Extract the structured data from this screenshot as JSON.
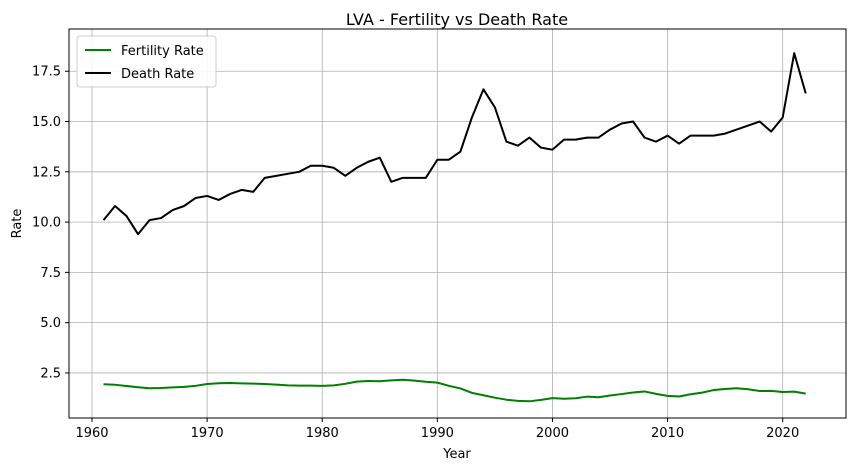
{
  "chart_data": {
    "type": "line",
    "title": "LVA - Fertility vs Death Rate",
    "xlabel": "Year",
    "ylabel": "Rate",
    "xlim": [
      1958,
      2025.5
    ],
    "ylim": [
      0.26,
      19.6
    ],
    "x_ticks": [
      1960,
      1970,
      1980,
      1990,
      2000,
      2010,
      2020
    ],
    "y_ticks": [
      2.5,
      5.0,
      7.5,
      10.0,
      12.5,
      15.0,
      17.5
    ],
    "grid": true,
    "legend_position": "top-left",
    "x": [
      1961,
      1962,
      1963,
      1964,
      1965,
      1966,
      1967,
      1968,
      1969,
      1970,
      1971,
      1972,
      1973,
      1974,
      1975,
      1976,
      1977,
      1978,
      1979,
      1980,
      1981,
      1982,
      1983,
      1984,
      1985,
      1986,
      1987,
      1988,
      1989,
      1990,
      1991,
      1992,
      1993,
      1994,
      1995,
      1996,
      1997,
      1998,
      1999,
      2000,
      2001,
      2002,
      2003,
      2004,
      2005,
      2006,
      2007,
      2008,
      2009,
      2010,
      2011,
      2012,
      2013,
      2014,
      2015,
      2016,
      2017,
      2018,
      2019,
      2020,
      2021,
      2022
    ],
    "series": [
      {
        "name": "Fertility Rate",
        "color": "#008000",
        "values": [
          1.94,
          1.91,
          1.85,
          1.79,
          1.74,
          1.75,
          1.78,
          1.81,
          1.86,
          1.95,
          1.99,
          2.0,
          1.98,
          1.97,
          1.95,
          1.92,
          1.88,
          1.87,
          1.87,
          1.86,
          1.88,
          1.96,
          2.07,
          2.1,
          2.09,
          2.13,
          2.16,
          2.12,
          2.06,
          2.02,
          1.86,
          1.73,
          1.51,
          1.39,
          1.27,
          1.17,
          1.11,
          1.09,
          1.16,
          1.25,
          1.22,
          1.24,
          1.32,
          1.29,
          1.38,
          1.45,
          1.53,
          1.58,
          1.46,
          1.36,
          1.33,
          1.44,
          1.52,
          1.65,
          1.7,
          1.74,
          1.69,
          1.6,
          1.61,
          1.55,
          1.57,
          1.47
        ]
      },
      {
        "name": "Death Rate",
        "color": "#000000",
        "values": [
          10.1,
          10.8,
          10.3,
          9.4,
          10.1,
          10.2,
          10.6,
          10.8,
          11.2,
          11.3,
          11.1,
          11.4,
          11.6,
          11.5,
          12.2,
          12.3,
          12.4,
          12.5,
          12.8,
          12.8,
          12.7,
          12.3,
          12.7,
          13.0,
          13.2,
          12.0,
          12.2,
          12.2,
          12.2,
          13.1,
          13.1,
          13.5,
          15.2,
          16.6,
          15.7,
          14.0,
          13.8,
          14.2,
          13.7,
          13.6,
          14.1,
          14.1,
          14.2,
          14.2,
          14.6,
          14.9,
          15.0,
          14.2,
          14.0,
          14.3,
          13.9,
          14.3,
          14.3,
          14.3,
          14.4,
          14.6,
          14.8,
          15.0,
          14.5,
          15.2,
          18.4,
          16.4
        ]
      }
    ]
  }
}
